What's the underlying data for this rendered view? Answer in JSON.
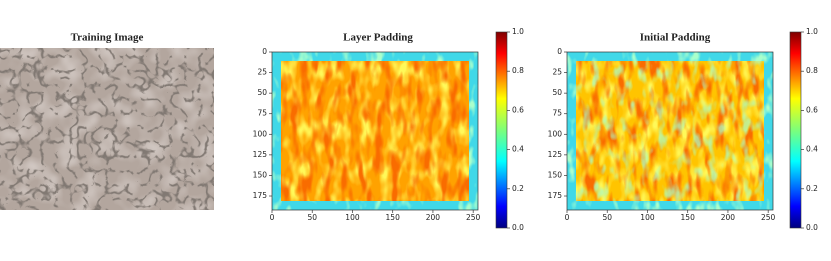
{
  "chart_data": [
    {
      "type": "image",
      "title": "Training Image"
    },
    {
      "type": "heatmap",
      "title": "Layer Padding",
      "colormap": "jet",
      "xlim": [
        0,
        256
      ],
      "ylim": [
        0,
        192
      ],
      "y_inverted": true,
      "xticks": [
        0,
        50,
        100,
        150,
        200,
        250
      ],
      "yticks": [
        0,
        25,
        50,
        75,
        100,
        125,
        150,
        175
      ],
      "clim": [
        0,
        1
      ],
      "cticks": [
        {
          "value": 0,
          "label": "0.0"
        },
        {
          "value": 0.2,
          "label": "0.2"
        },
        {
          "value": 0.4,
          "label": "0.4"
        },
        {
          "value": 0.6,
          "label": "0.6"
        },
        {
          "value": 0.8,
          "label": "0.8"
        },
        {
          "value": 1,
          "label": "1.0"
        }
      ]
    },
    {
      "type": "heatmap",
      "title": "Initial Padding",
      "colormap": "jet",
      "xlim": [
        0,
        256
      ],
      "ylim": [
        0,
        192
      ],
      "y_inverted": true,
      "xticks": [
        0,
        50,
        100,
        150,
        200,
        250
      ],
      "yticks": [
        0,
        25,
        50,
        75,
        100,
        125,
        150,
        175
      ],
      "clim": [
        0,
        1
      ],
      "cticks": [
        {
          "value": 0,
          "label": "0.0"
        },
        {
          "value": 0.2,
          "label": "0.2"
        },
        {
          "value": 0.4,
          "label": "0.4"
        },
        {
          "value": 0.6,
          "label": "0.6"
        },
        {
          "value": 0.8,
          "label": "0.8"
        },
        {
          "value": 1,
          "label": "1.0"
        }
      ]
    }
  ]
}
